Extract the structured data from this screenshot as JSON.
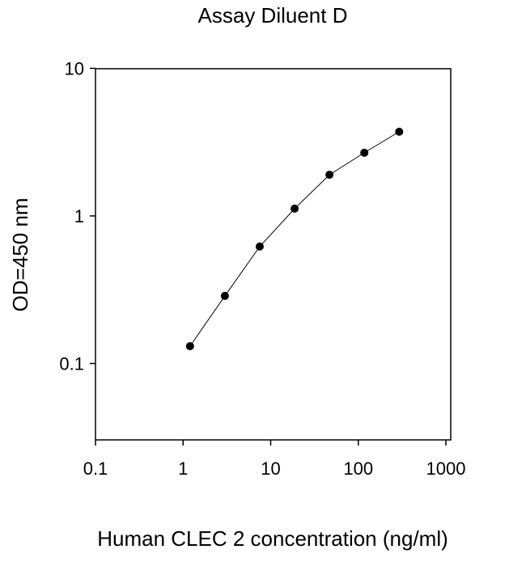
{
  "chart_data": {
    "type": "line",
    "title": "Assay Diluent D",
    "xlabel": "Human CLEC 2 concentration (ng/ml)",
    "ylabel": "OD=450 nm",
    "xscale": "log",
    "yscale": "log",
    "xlim": [
      0.1,
      1000
    ],
    "ylim": [
      0.03,
      10
    ],
    "xticks": [
      0.1,
      1,
      10,
      100,
      1000
    ],
    "xtick_labels": [
      "0.1",
      "1",
      "10",
      "100",
      "1000"
    ],
    "yticks": [
      0.1,
      1,
      10
    ],
    "ytick_labels": [
      "0.1",
      "1",
      "10"
    ],
    "grid": false,
    "series": [
      {
        "name": "Assay Diluent D",
        "x": [
          1.2,
          3,
          7.5,
          18.75,
          46.88,
          117.19,
          292.97
        ],
        "y": [
          0.131,
          0.287,
          0.62,
          1.12,
          1.9,
          2.68,
          3.72
        ],
        "color": "#000000"
      }
    ]
  }
}
